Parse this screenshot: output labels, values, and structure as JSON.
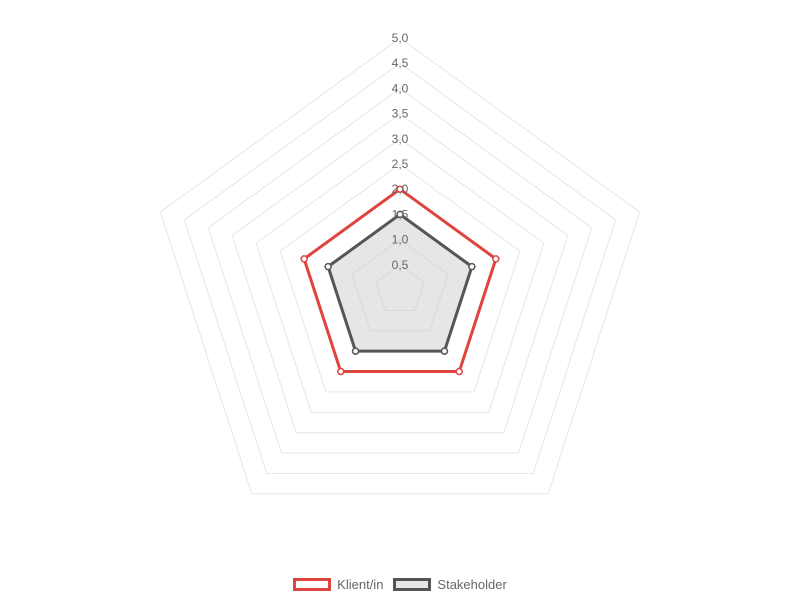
{
  "chart_data": {
    "type": "radar",
    "axis": {
      "min": 0,
      "max": 5,
      "step": 0.5,
      "tick_labels": [
        "0,5",
        "1,0",
        "1,5",
        "2,0",
        "2,5",
        "3,0",
        "3,5",
        "4,0",
        "4,5",
        "5,0"
      ],
      "axes_count": 5
    },
    "grid": true,
    "legend_position": "bottom",
    "series": [
      {
        "name": "Klient/in",
        "values": [
          2.0,
          2.0,
          2.0,
          2.0,
          2.0
        ],
        "color": "#e0443f",
        "fill": "rgba(255,255,255,0)"
      },
      {
        "name": "Stakeholder",
        "values": [
          1.5,
          1.5,
          1.5,
          1.5,
          1.5
        ],
        "color": "#555555",
        "fill": "rgba(200,200,200,0.45)"
      }
    ]
  }
}
